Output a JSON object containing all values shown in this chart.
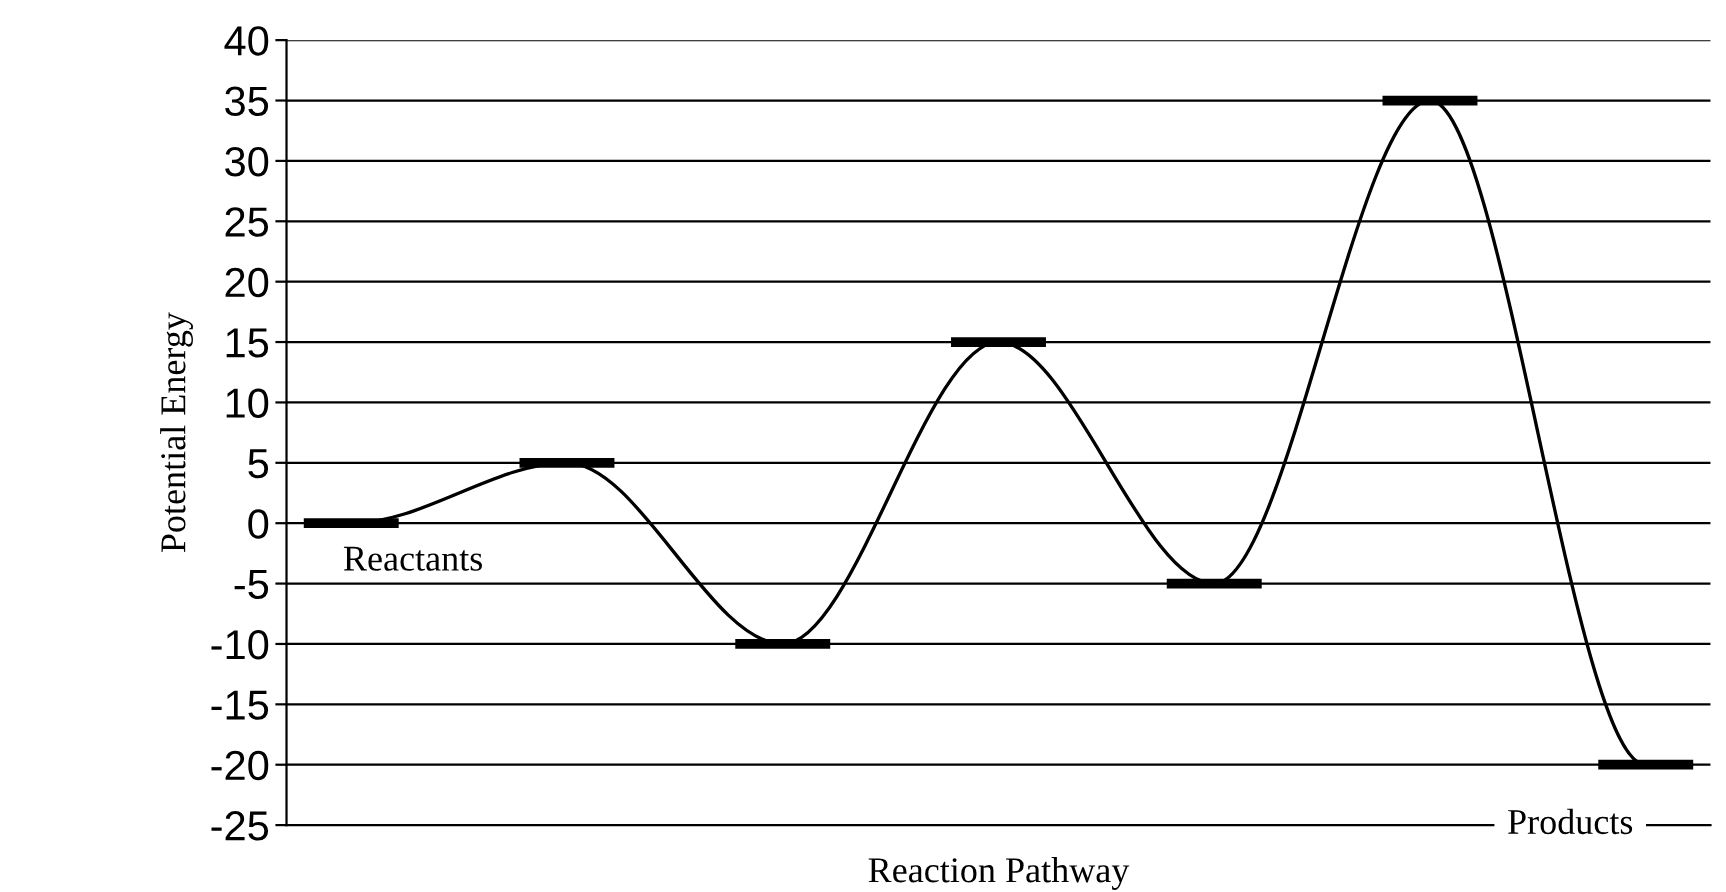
{
  "chart_data": {
    "type": "line",
    "xlabel": "Reaction Pathway",
    "ylabel": "Potential Energy",
    "categories": [
      null,
      null,
      null,
      null,
      null,
      null,
      null
    ],
    "series": [
      {
        "color": "#000000",
        "values": [
          0,
          5,
          -10,
          15,
          -5,
          35,
          -20
        ]
      }
    ],
    "ylim": [
      -25,
      40
    ],
    "yticks": [
      -25,
      -20,
      -15,
      -10,
      -5,
      0,
      5,
      10,
      15,
      20,
      25,
      30,
      35,
      40
    ],
    "grid": "y",
    "annotations": [
      "Reactants",
      "Products"
    ]
  }
}
